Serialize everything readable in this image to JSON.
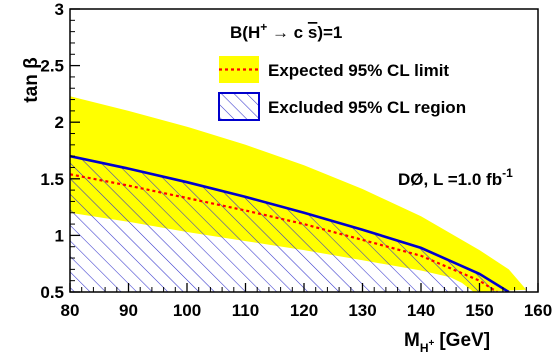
{
  "chart_data": {
    "type": "area",
    "xlabel": "M",
    "xlabel_sub": "H",
    "xlabel_sub_sup": "+",
    "xlabel_unit": "[GeV]",
    "ylabel": "tan β",
    "xlim": [
      80,
      160
    ],
    "ylim": [
      0.5,
      3
    ],
    "x_ticks": [
      80,
      90,
      100,
      110,
      120,
      130,
      140,
      150,
      160
    ],
    "y_ticks": [
      0.5,
      1,
      1.5,
      2,
      2.5,
      3
    ],
    "y_tick_labels": [
      "0.5",
      "1",
      "1.5",
      "2",
      "2.5",
      "3"
    ],
    "expected_band": {
      "name": "Expected 95% CL limit",
      "color": "#ffff00",
      "upper": [
        [
          80,
          2.23
        ],
        [
          90,
          2.1
        ],
        [
          100,
          1.96
        ],
        [
          110,
          1.8
        ],
        [
          120,
          1.62
        ],
        [
          130,
          1.41
        ],
        [
          140,
          1.17
        ],
        [
          150,
          0.87
        ],
        [
          155,
          0.7
        ],
        [
          158,
          0.52
        ]
      ],
      "lower": [
        [
          80,
          1.2
        ],
        [
          90,
          1.12
        ],
        [
          100,
          1.03
        ],
        [
          110,
          0.95
        ],
        [
          120,
          0.87
        ],
        [
          130,
          0.78
        ],
        [
          140,
          0.69
        ],
        [
          145,
          0.63
        ],
        [
          147,
          0.58
        ],
        [
          149,
          0.5
        ]
      ]
    },
    "expected_line": {
      "name": "Expected 95% CL limit",
      "color": "#ff0000",
      "points": [
        [
          80,
          1.54
        ],
        [
          90,
          1.44
        ],
        [
          100,
          1.33
        ],
        [
          110,
          1.22
        ],
        [
          120,
          1.1
        ],
        [
          130,
          0.96
        ],
        [
          140,
          0.82
        ],
        [
          150,
          0.6
        ],
        [
          153,
          0.5
        ]
      ]
    },
    "excluded_region": {
      "name": "Excluded 95% CL region",
      "color": "#0000cc",
      "boundary": [
        [
          80,
          1.7
        ],
        [
          90,
          1.59
        ],
        [
          100,
          1.47
        ],
        [
          110,
          1.34
        ],
        [
          120,
          1.2
        ],
        [
          130,
          1.05
        ],
        [
          140,
          0.89
        ],
        [
          150,
          0.66
        ],
        [
          155,
          0.5
        ]
      ]
    }
  },
  "legend": {
    "title_prefix": "B(H",
    "title_sup": "+",
    "title_arrow": " → c ",
    "title_sbar": "s",
    "title_suffix": ")=1",
    "expected_label": "Expected 95% CL limit",
    "excluded_label": "Excluded 95% CL region"
  },
  "annotation": {
    "experiment": "DØ, L =1.0 fb",
    "lumi_sup": "-1"
  }
}
